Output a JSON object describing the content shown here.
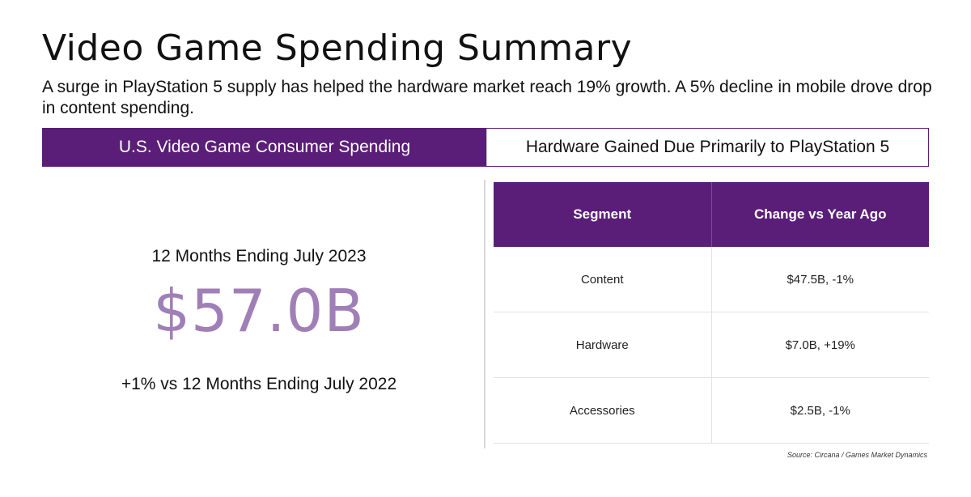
{
  "header": {
    "title": "Video Game Spending Summary",
    "subtitle": "A surge in PlayStation 5 supply has helped the hardware market reach 19% growth. A 5% decline in mobile drove drop in content spending."
  },
  "banner": {
    "left_label": "U.S. Video Game Consumer Spending",
    "right_label": "Hardware Gained Due Primarily to PlayStation 5"
  },
  "kpi": {
    "period": "12 Months Ending July 2023",
    "value": "$57.0B",
    "comparison": "+1% vs 12 Months Ending July 2022"
  },
  "colors": {
    "accent_purple": "#5a1e78",
    "kpi_lavender": "#a07fb7"
  },
  "chart_data": {
    "type": "table",
    "columns": [
      "Segment",
      "Change vs Year Ago"
    ],
    "rows": [
      [
        "Content",
        "$47.5B, -1%"
      ],
      [
        "Hardware",
        "$7.0B, +19%"
      ],
      [
        "Accessories",
        "$2.5B, -1%"
      ]
    ]
  },
  "footer": {
    "source": "Source: Circana / Games Market Dynamics"
  }
}
